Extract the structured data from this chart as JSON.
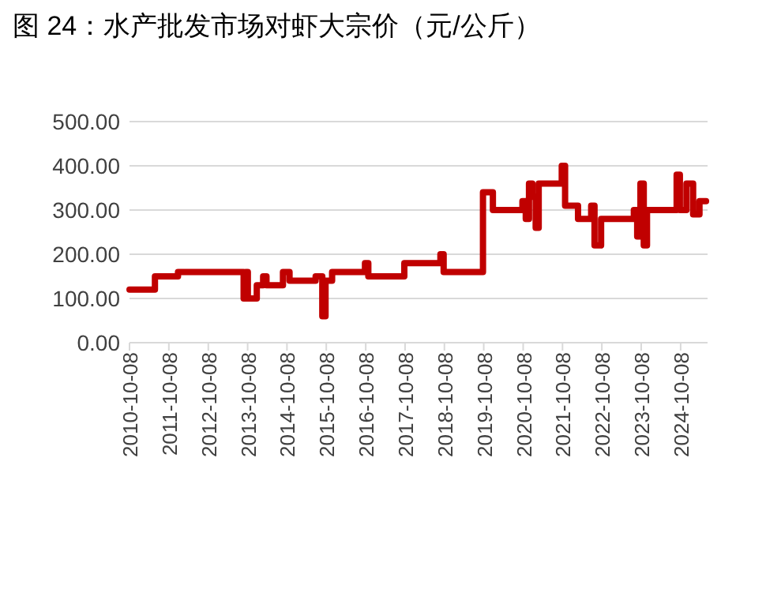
{
  "chart_data": {
    "type": "step",
    "title": "图 24：水产批发市场对虾大宗价（元/公斤）",
    "x": [
      "2010-10-08",
      "2011-06-01",
      "2012-01-01",
      "2013-08-20",
      "2013-09-01",
      "2013-09-20",
      "2013-10-10",
      "2014-01-01",
      "2014-03-01",
      "2014-04-01",
      "2014-09-01",
      "2014-11-01",
      "2015-07-01",
      "2015-09-01",
      "2015-10-01",
      "2015-12-01",
      "2016-10-01",
      "2016-11-01",
      "2017-10-01",
      "2018-09-01",
      "2018-10-01",
      "2019-10-01",
      "2020-01-01",
      "2020-10-01",
      "2020-11-01",
      "2020-12-01",
      "2021-01-01",
      "2021-02-01",
      "2021-03-01",
      "2021-10-01",
      "2021-11-01",
      "2022-03-01",
      "2022-07-01",
      "2022-08-01",
      "2022-10-01",
      "2023-08-01",
      "2023-09-01",
      "2023-10-01",
      "2023-11-01",
      "2023-12-01",
      "2024-09-01",
      "2024-10-01",
      "2024-12-01",
      "2025-02-01",
      "2025-04-01",
      "2025-06-01"
    ],
    "series": [
      {
        "color": "#c00000",
        "values": [
          120,
          150,
          160,
          160,
          100,
          160,
          100,
          130,
          150,
          130,
          160,
          140,
          150,
          60,
          140,
          160,
          180,
          150,
          180,
          200,
          160,
          340,
          300,
          320,
          280,
          360,
          330,
          260,
          360,
          400,
          310,
          280,
          310,
          220,
          280,
          300,
          240,
          360,
          220,
          300,
          380,
          300,
          360,
          290,
          320,
          320
        ]
      }
    ],
    "xlim": [
      "2010-10-08",
      "2025-06-15"
    ],
    "xticks": [
      "2010-10-08",
      "2011-10-08",
      "2012-10-08",
      "2013-10-08",
      "2014-10-08",
      "2015-10-08",
      "2016-10-08",
      "2017-10-08",
      "2018-10-08",
      "2019-10-08",
      "2020-10-08",
      "2021-10-08",
      "2022-10-08",
      "2023-10-08",
      "2024-10-08"
    ],
    "ylim": [
      0,
      500
    ],
    "yticks": [
      {
        "value": 0,
        "label": "0.00"
      },
      {
        "value": 100,
        "label": "100.00"
      },
      {
        "value": 200,
        "label": "200.00"
      },
      {
        "value": 300,
        "label": "300.00"
      },
      {
        "value": 400,
        "label": "400.00"
      },
      {
        "value": 500,
        "label": "500.00"
      }
    ],
    "grid": "y",
    "line_style": "solid"
  }
}
